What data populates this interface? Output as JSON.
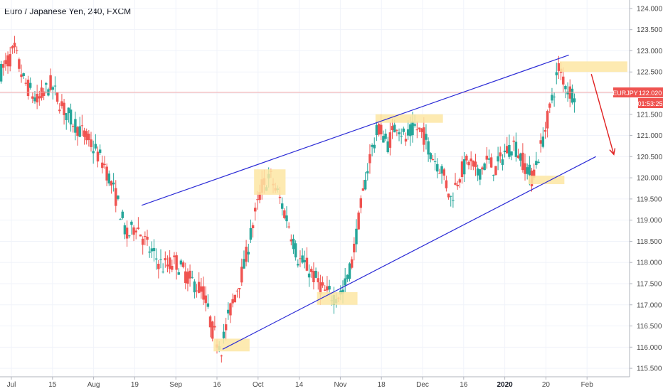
{
  "header": {
    "title": "Euro / Japanese Yen, 240, FXCM"
  },
  "price_tag": {
    "symbol": "EURJPY",
    "price": "122.020",
    "countdown": "01:53:25"
  },
  "colors": {
    "up": "#26a69a",
    "down": "#ef5350",
    "trendline": "#2b2bd6",
    "arrow": "#e02020",
    "highlight": "#fde6a3",
    "priceline": "#f4a6a6",
    "grid": "#f0f3fa"
  },
  "chart_data": {
    "type": "candlestick",
    "ylim": [
      115.3,
      124.2
    ],
    "y_ticks": [
      "115.500",
      "116.000",
      "116.500",
      "117.000",
      "117.500",
      "118.000",
      "118.500",
      "119.000",
      "119.500",
      "120.000",
      "120.500",
      "121.000",
      "121.500",
      "122.000",
      "122.500",
      "123.000",
      "123.500",
      "124.000"
    ],
    "x_ticks": [
      {
        "label": "Jul",
        "bold": false
      },
      {
        "label": "15",
        "bold": false
      },
      {
        "label": "Aug",
        "bold": false
      },
      {
        "label": "19",
        "bold": false
      },
      {
        "label": "Sep",
        "bold": false
      },
      {
        "label": "16",
        "bold": false
      },
      {
        "label": "Oct",
        "bold": false
      },
      {
        "label": "14",
        "bold": false
      },
      {
        "label": "Nov",
        "bold": false
      },
      {
        "label": "18",
        "bold": false
      },
      {
        "label": "Dec",
        "bold": false
      },
      {
        "label": "16",
        "bold": false
      },
      {
        "label": "2020",
        "bold": true
      },
      {
        "label": "20",
        "bold": false
      },
      {
        "label": "Feb",
        "bold": false
      }
    ],
    "current_price": 122.02,
    "path_points": [
      [
        0,
        122.5
      ],
      [
        3,
        123.0
      ],
      [
        5,
        122.3
      ],
      [
        8,
        121.8
      ],
      [
        11,
        122.2
      ],
      [
        14,
        121.6
      ],
      [
        17,
        121.2
      ],
      [
        20,
        120.8
      ],
      [
        23,
        120.3
      ],
      [
        26,
        119.4
      ],
      [
        28,
        118.6
      ],
      [
        30,
        118.9
      ],
      [
        33,
        118.3
      ],
      [
        36,
        117.9
      ],
      [
        39,
        118.0
      ],
      [
        42,
        117.6
      ],
      [
        45,
        117.3
      ],
      [
        47,
        116.4
      ],
      [
        49,
        116.0
      ],
      [
        51,
        116.9
      ],
      [
        54,
        117.9
      ],
      [
        56,
        118.9
      ],
      [
        58,
        119.8
      ],
      [
        60,
        120.0
      ],
      [
        62,
        119.5
      ],
      [
        64,
        118.9
      ],
      [
        66,
        118.1
      ],
      [
        68,
        117.9
      ],
      [
        70,
        117.6
      ],
      [
        72,
        117.3
      ],
      [
        74,
        117.2
      ],
      [
        76,
        117.3
      ],
      [
        78,
        118.0
      ],
      [
        80,
        119.3
      ],
      [
        82,
        120.5
      ],
      [
        84,
        121.2
      ],
      [
        86,
        120.8
      ],
      [
        88,
        121.3
      ],
      [
        90,
        120.9
      ],
      [
        92,
        121.2
      ],
      [
        94,
        121.0
      ],
      [
        96,
        120.5
      ],
      [
        98,
        120.2
      ],
      [
        100,
        119.5
      ],
      [
        102,
        120.1
      ],
      [
        104,
        120.4
      ],
      [
        106,
        120.1
      ],
      [
        108,
        120.4
      ],
      [
        110,
        120.2
      ],
      [
        112,
        120.6
      ],
      [
        114,
        120.8
      ],
      [
        116,
        120.4
      ],
      [
        118,
        120.0
      ],
      [
        120,
        120.7
      ],
      [
        122,
        121.6
      ],
      [
        124,
        122.6
      ],
      [
        126,
        122.1
      ],
      [
        127,
        122.0
      ]
    ],
    "trendlines": [
      {
        "from": [
          31,
          119.35
        ],
        "to": [
          126,
          122.9
        ]
      },
      {
        "from": [
          49,
          115.95
        ],
        "to": [
          132,
          120.5
        ]
      }
    ],
    "highlights": [
      {
        "x": [
          47,
          55
        ],
        "y": [
          115.9,
          116.2
        ]
      },
      {
        "x": [
          56,
          63
        ],
        "y": [
          119.6,
          120.2
        ]
      },
      {
        "x": [
          70,
          79
        ],
        "y": [
          117.0,
          117.3
        ]
      },
      {
        "x": [
          83,
          98
        ],
        "y": [
          121.3,
          121.5
        ]
      },
      {
        "x": [
          117,
          125
        ],
        "y": [
          119.85,
          120.05
        ]
      },
      {
        "x": [
          124,
          139
        ],
        "y": [
          122.5,
          122.75
        ]
      }
    ],
    "projection_arrow": {
      "from": [
        131,
        122.45
      ],
      "to": [
        136,
        120.55
      ]
    }
  }
}
